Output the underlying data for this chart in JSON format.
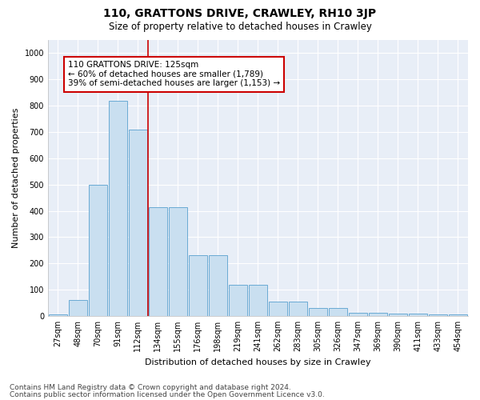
{
  "title": "110, GRATTONS DRIVE, CRAWLEY, RH10 3JP",
  "subtitle": "Size of property relative to detached houses in Crawley",
  "xlabel": "Distribution of detached houses by size in Crawley",
  "ylabel": "Number of detached properties",
  "bin_labels": [
    "27sqm",
    "48sqm",
    "70sqm",
    "91sqm",
    "112sqm",
    "134sqm",
    "155sqm",
    "176sqm",
    "198sqm",
    "219sqm",
    "241sqm",
    "262sqm",
    "283sqm",
    "305sqm",
    "326sqm",
    "347sqm",
    "369sqm",
    "390sqm",
    "411sqm",
    "433sqm",
    "454sqm"
  ],
  "bar_heights": [
    5,
    60,
    500,
    820,
    710,
    415,
    415,
    230,
    230,
    120,
    120,
    55,
    55,
    30,
    30,
    12,
    12,
    8,
    8,
    5,
    5
  ],
  "bar_color": "#c9dff0",
  "bar_edge_color": "#6aaad4",
  "vline_x_idx": 4.5,
  "vline_color": "#cc0000",
  "annotation_text": "110 GRATTONS DRIVE: 125sqm\n← 60% of detached houses are smaller (1,789)\n39% of semi-detached houses are larger (1,153) →",
  "annotation_box_facecolor": "#ffffff",
  "annotation_box_edgecolor": "#cc0000",
  "ylim": [
    0,
    1050
  ],
  "yticks": [
    0,
    100,
    200,
    300,
    400,
    500,
    600,
    700,
    800,
    900,
    1000
  ],
  "footer_line1": "Contains HM Land Registry data © Crown copyright and database right 2024.",
  "footer_line2": "Contains public sector information licensed under the Open Government Licence v3.0.",
  "bg_color": "#ffffff",
  "plot_bg_color": "#e8eef7",
  "title_fontsize": 10,
  "subtitle_fontsize": 8.5,
  "tick_fontsize": 7,
  "ylabel_fontsize": 8,
  "xlabel_fontsize": 8,
  "annotation_fontsize": 7.5,
  "footer_fontsize": 6.5,
  "grid_color": "#ffffff",
  "grid_linewidth": 0.8
}
